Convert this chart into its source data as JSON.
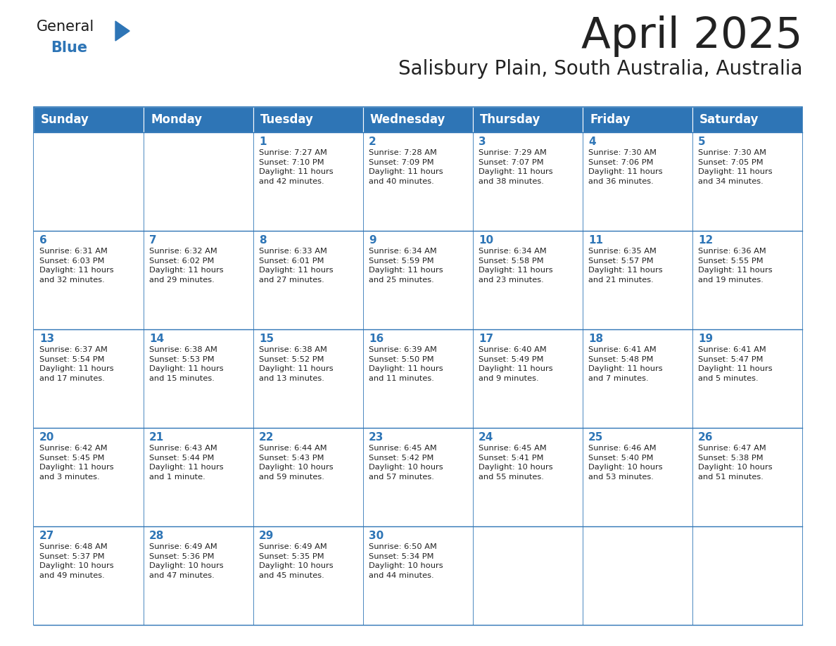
{
  "title": "April 2025",
  "subtitle": "Salisbury Plain, South Australia, Australia",
  "header_bg": "#2E75B6",
  "header_text_color": "#FFFFFF",
  "cell_bg": "#FFFFFF",
  "border_color": "#2E75B6",
  "day_names": [
    "Sunday",
    "Monday",
    "Tuesday",
    "Wednesday",
    "Thursday",
    "Friday",
    "Saturday"
  ],
  "text_color": "#222222",
  "day_num_color": "#2E75B6",
  "logo_general_color": "#1a1a1a",
  "logo_blue_color": "#2E75B6",
  "calendar_data": [
    [
      {
        "day": null,
        "info": ""
      },
      {
        "day": null,
        "info": ""
      },
      {
        "day": 1,
        "info": "Sunrise: 7:27 AM\nSunset: 7:10 PM\nDaylight: 11 hours\nand 42 minutes."
      },
      {
        "day": 2,
        "info": "Sunrise: 7:28 AM\nSunset: 7:09 PM\nDaylight: 11 hours\nand 40 minutes."
      },
      {
        "day": 3,
        "info": "Sunrise: 7:29 AM\nSunset: 7:07 PM\nDaylight: 11 hours\nand 38 minutes."
      },
      {
        "day": 4,
        "info": "Sunrise: 7:30 AM\nSunset: 7:06 PM\nDaylight: 11 hours\nand 36 minutes."
      },
      {
        "day": 5,
        "info": "Sunrise: 7:30 AM\nSunset: 7:05 PM\nDaylight: 11 hours\nand 34 minutes."
      }
    ],
    [
      {
        "day": 6,
        "info": "Sunrise: 6:31 AM\nSunset: 6:03 PM\nDaylight: 11 hours\nand 32 minutes."
      },
      {
        "day": 7,
        "info": "Sunrise: 6:32 AM\nSunset: 6:02 PM\nDaylight: 11 hours\nand 29 minutes."
      },
      {
        "day": 8,
        "info": "Sunrise: 6:33 AM\nSunset: 6:01 PM\nDaylight: 11 hours\nand 27 minutes."
      },
      {
        "day": 9,
        "info": "Sunrise: 6:34 AM\nSunset: 5:59 PM\nDaylight: 11 hours\nand 25 minutes."
      },
      {
        "day": 10,
        "info": "Sunrise: 6:34 AM\nSunset: 5:58 PM\nDaylight: 11 hours\nand 23 minutes."
      },
      {
        "day": 11,
        "info": "Sunrise: 6:35 AM\nSunset: 5:57 PM\nDaylight: 11 hours\nand 21 minutes."
      },
      {
        "day": 12,
        "info": "Sunrise: 6:36 AM\nSunset: 5:55 PM\nDaylight: 11 hours\nand 19 minutes."
      }
    ],
    [
      {
        "day": 13,
        "info": "Sunrise: 6:37 AM\nSunset: 5:54 PM\nDaylight: 11 hours\nand 17 minutes."
      },
      {
        "day": 14,
        "info": "Sunrise: 6:38 AM\nSunset: 5:53 PM\nDaylight: 11 hours\nand 15 minutes."
      },
      {
        "day": 15,
        "info": "Sunrise: 6:38 AM\nSunset: 5:52 PM\nDaylight: 11 hours\nand 13 minutes."
      },
      {
        "day": 16,
        "info": "Sunrise: 6:39 AM\nSunset: 5:50 PM\nDaylight: 11 hours\nand 11 minutes."
      },
      {
        "day": 17,
        "info": "Sunrise: 6:40 AM\nSunset: 5:49 PM\nDaylight: 11 hours\nand 9 minutes."
      },
      {
        "day": 18,
        "info": "Sunrise: 6:41 AM\nSunset: 5:48 PM\nDaylight: 11 hours\nand 7 minutes."
      },
      {
        "day": 19,
        "info": "Sunrise: 6:41 AM\nSunset: 5:47 PM\nDaylight: 11 hours\nand 5 minutes."
      }
    ],
    [
      {
        "day": 20,
        "info": "Sunrise: 6:42 AM\nSunset: 5:45 PM\nDaylight: 11 hours\nand 3 minutes."
      },
      {
        "day": 21,
        "info": "Sunrise: 6:43 AM\nSunset: 5:44 PM\nDaylight: 11 hours\nand 1 minute."
      },
      {
        "day": 22,
        "info": "Sunrise: 6:44 AM\nSunset: 5:43 PM\nDaylight: 10 hours\nand 59 minutes."
      },
      {
        "day": 23,
        "info": "Sunrise: 6:45 AM\nSunset: 5:42 PM\nDaylight: 10 hours\nand 57 minutes."
      },
      {
        "day": 24,
        "info": "Sunrise: 6:45 AM\nSunset: 5:41 PM\nDaylight: 10 hours\nand 55 minutes."
      },
      {
        "day": 25,
        "info": "Sunrise: 6:46 AM\nSunset: 5:40 PM\nDaylight: 10 hours\nand 53 minutes."
      },
      {
        "day": 26,
        "info": "Sunrise: 6:47 AM\nSunset: 5:38 PM\nDaylight: 10 hours\nand 51 minutes."
      }
    ],
    [
      {
        "day": 27,
        "info": "Sunrise: 6:48 AM\nSunset: 5:37 PM\nDaylight: 10 hours\nand 49 minutes."
      },
      {
        "day": 28,
        "info": "Sunrise: 6:49 AM\nSunset: 5:36 PM\nDaylight: 10 hours\nand 47 minutes."
      },
      {
        "day": 29,
        "info": "Sunrise: 6:49 AM\nSunset: 5:35 PM\nDaylight: 10 hours\nand 45 minutes."
      },
      {
        "day": 30,
        "info": "Sunrise: 6:50 AM\nSunset: 5:34 PM\nDaylight: 10 hours\nand 44 minutes."
      },
      {
        "day": null,
        "info": ""
      },
      {
        "day": null,
        "info": ""
      },
      {
        "day": null,
        "info": ""
      }
    ]
  ]
}
